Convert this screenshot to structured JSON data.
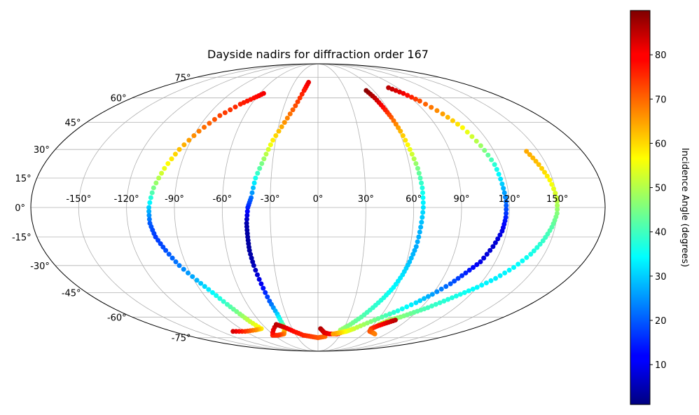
{
  "chart_data": {
    "type": "scatter",
    "projection": "mollweide",
    "title": "Dayside nadirs for diffraction order 167",
    "x_ticks": [
      {
        "value": -150,
        "label": "-150°"
      },
      {
        "value": -120,
        "label": "-120°"
      },
      {
        "value": -90,
        "label": "-90°"
      },
      {
        "value": -60,
        "label": "-60°"
      },
      {
        "value": -30,
        "label": "-30°"
      },
      {
        "value": 0,
        "label": "0°"
      },
      {
        "value": 30,
        "label": "30°"
      },
      {
        "value": 60,
        "label": "60°"
      },
      {
        "value": 90,
        "label": "90°"
      },
      {
        "value": 120,
        "label": "120°"
      },
      {
        "value": 150,
        "label": "150°"
      }
    ],
    "y_ticks": [
      {
        "value": 75,
        "label": "75°"
      },
      {
        "value": 60,
        "label": "60°"
      },
      {
        "value": 45,
        "label": "45°"
      },
      {
        "value": 30,
        "label": "30°"
      },
      {
        "value": 15,
        "label": "15°"
      },
      {
        "value": 0,
        "label": "0°"
      },
      {
        "value": -15,
        "label": "-15°"
      },
      {
        "value": -30,
        "label": "-30°"
      },
      {
        "value": -45,
        "label": "-45°"
      },
      {
        "value": -60,
        "label": "-60°"
      },
      {
        "value": -75,
        "label": "-75°"
      }
    ],
    "xlim": [
      -180,
      180
    ],
    "ylim": [
      -90,
      90
    ],
    "grid": true,
    "colormap": "jet",
    "colorbar": {
      "label": "Incidence Angle (degrees)",
      "range": [
        1,
        90
      ],
      "ticks": [
        {
          "value": 10,
          "label": "10"
        },
        {
          "value": 20,
          "label": "20"
        },
        {
          "value": 30,
          "label": "30"
        },
        {
          "value": 40,
          "label": "40"
        },
        {
          "value": 50,
          "label": "50"
        },
        {
          "value": 60,
          "label": "60"
        },
        {
          "value": 70,
          "label": "70"
        },
        {
          "value": 80,
          "label": "80"
        }
      ]
    },
    "series": [
      {
        "points": [
          [
            -56,
            63,
            80
          ],
          [
            -62,
            60,
            78
          ],
          [
            -70,
            56,
            76
          ],
          [
            -80,
            49,
            73
          ],
          [
            -88,
            40,
            68
          ],
          [
            -95,
            30,
            62
          ],
          [
            -100,
            20,
            55
          ],
          [
            -104,
            10,
            45
          ],
          [
            -106,
            0,
            30
          ],
          [
            -106,
            -8,
            20
          ],
          [
            -104,
            -15,
            17
          ],
          [
            -100,
            -22,
            19
          ],
          [
            -95,
            -30,
            23
          ],
          [
            -88,
            -38,
            28
          ],
          [
            -82,
            -45,
            34
          ],
          [
            -77,
            -52,
            40
          ],
          [
            -73,
            -58,
            46
          ],
          [
            -70,
            -63,
            52
          ],
          [
            -66,
            -68,
            58
          ],
          [
            -75,
            -69,
            66
          ],
          [
            -90,
            -70,
            74
          ],
          [
            -105,
            -70,
            82
          ]
        ]
      },
      {
        "points": [
          [
            -12,
            71,
            81
          ],
          [
            -15,
            65,
            77
          ],
          [
            -20,
            55,
            72
          ],
          [
            -26,
            45,
            66
          ],
          [
            -32,
            35,
            58
          ],
          [
            -36,
            25,
            48
          ],
          [
            -40,
            15,
            36
          ],
          [
            -42,
            5,
            22
          ],
          [
            -44,
            0,
            15
          ],
          [
            -45,
            -8,
            5
          ],
          [
            -45,
            -15,
            4
          ],
          [
            -45,
            -22,
            4
          ],
          [
            -44,
            -30,
            6
          ],
          [
            -42,
            -40,
            11
          ],
          [
            -40,
            -50,
            20
          ],
          [
            -38,
            -58,
            30
          ],
          [
            -38,
            -65,
            42
          ],
          [
            -40,
            -69,
            56
          ],
          [
            -45,
            -72,
            68
          ],
          [
            -55,
            -73,
            75
          ],
          [
            -62,
            -73,
            76
          ],
          [
            -45,
            -65,
            85
          ],
          [
            -38,
            -67,
            82
          ],
          [
            -30,
            -70,
            78
          ],
          [
            -20,
            -73,
            76
          ],
          [
            -10,
            -74,
            74
          ],
          [
            0,
            -75,
            72
          ],
          [
            10,
            -74,
            70
          ]
        ]
      },
      {
        "points": [
          [
            3,
            -68,
            86
          ],
          [
            8,
            -71,
            82
          ],
          [
            15,
            -72,
            80
          ],
          [
            25,
            -72,
            78
          ],
          [
            33,
            -70,
            75
          ],
          [
            27,
            -69,
            48
          ],
          [
            35,
            -65,
            45
          ],
          [
            42,
            -60,
            42
          ],
          [
            48,
            -54,
            39
          ],
          [
            53,
            -48,
            37
          ],
          [
            57,
            -42,
            34
          ],
          [
            60,
            -35,
            32
          ],
          [
            62,
            -28,
            29
          ],
          [
            64,
            -20,
            27
          ],
          [
            65,
            -10,
            28
          ],
          [
            66,
            0,
            32
          ],
          [
            66,
            10,
            37
          ],
          [
            65,
            20,
            45
          ],
          [
            63,
            30,
            55
          ],
          [
            61,
            40,
            63
          ],
          [
            59,
            48,
            71
          ],
          [
            57,
            54,
            78
          ],
          [
            55,
            60,
            84
          ],
          [
            52,
            65,
            89
          ]
        ]
      },
      {
        "points": [
          [
            80,
            67,
            85
          ],
          [
            88,
            63,
            80
          ],
          [
            95,
            58,
            72
          ],
          [
            103,
            50,
            65
          ],
          [
            109,
            42,
            57
          ],
          [
            113,
            32,
            48
          ],
          [
            116,
            22,
            38
          ],
          [
            117,
            12,
            30
          ],
          [
            118,
            3,
            22
          ],
          [
            118,
            -5,
            15
          ],
          [
            117,
            -12,
            10
          ],
          [
            114,
            -20,
            8
          ],
          [
            110,
            -28,
            10
          ],
          [
            104,
            -34,
            15
          ],
          [
            98,
            -40,
            20
          ],
          [
            90,
            -46,
            26
          ],
          [
            82,
            -51,
            32
          ],
          [
            72,
            -56,
            37
          ],
          [
            62,
            -60,
            42
          ],
          [
            52,
            -64,
            47
          ],
          [
            42,
            -68,
            52
          ],
          [
            35,
            -70,
            55
          ],
          [
            28,
            -71,
            60
          ],
          [
            20,
            -72,
            65
          ]
        ]
      },
      {
        "points": [
          [
            142,
            29,
            64
          ],
          [
            145,
            22,
            62
          ],
          [
            148,
            14,
            57
          ],
          [
            150,
            5,
            52
          ],
          [
            150,
            -3,
            46
          ],
          [
            148,
            -10,
            42
          ],
          [
            145,
            -17,
            39
          ],
          [
            141,
            -24,
            36
          ],
          [
            135,
            -31,
            34
          ],
          [
            128,
            -37,
            33
          ],
          [
            120,
            -42,
            34
          ],
          [
            112,
            -46,
            36
          ],
          [
            104,
            -50,
            38
          ],
          [
            96,
            -54,
            40
          ],
          [
            88,
            -57,
            43
          ],
          [
            80,
            -60,
            46
          ],
          [
            72,
            -62,
            48
          ],
          [
            66,
            -65,
            50
          ],
          [
            78,
            -62,
            85
          ],
          [
            72,
            -64,
            82
          ],
          [
            66,
            -66,
            78
          ],
          [
            62,
            -68,
            75
          ],
          [
            64,
            -70,
            72
          ],
          [
            70,
            -71,
            70
          ],
          [
            75,
            -72,
            68
          ]
        ]
      }
    ]
  }
}
